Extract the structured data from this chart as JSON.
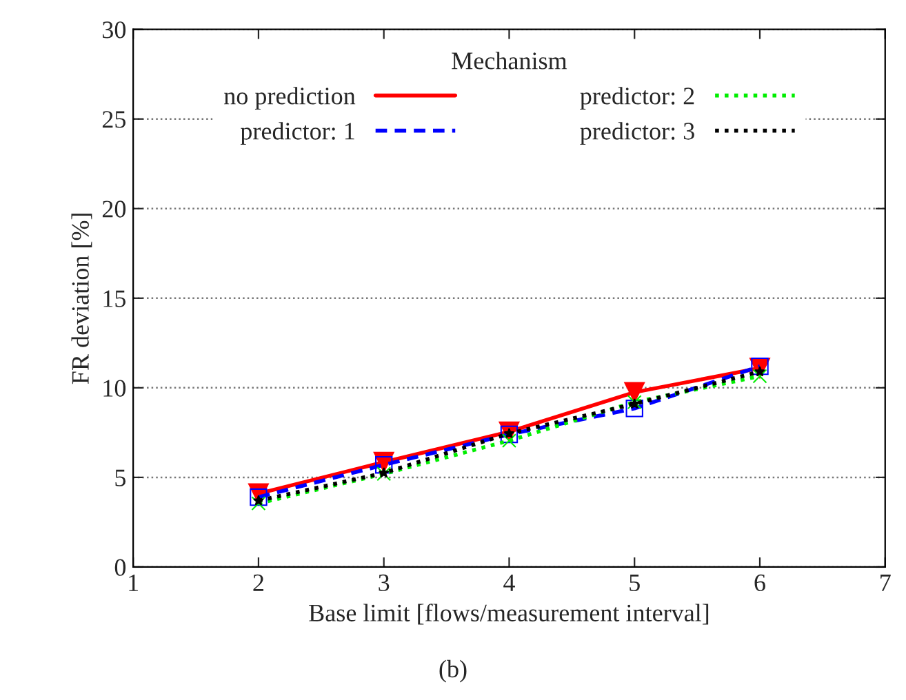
{
  "chart_data": {
    "type": "line",
    "xlabel": "Base limit [flows/measurement interval]",
    "ylabel": "FR deviation [%]",
    "legend_title": "Mechanism",
    "legend": "top",
    "grid": "y",
    "x": [
      2,
      3,
      4,
      5,
      6
    ],
    "xlim": [
      1,
      7
    ],
    "xticks": [
      1,
      2,
      3,
      4,
      5,
      6,
      7
    ],
    "ylim": [
      0,
      30
    ],
    "yticks": [
      0,
      5,
      10,
      15,
      20,
      25,
      30
    ],
    "series": [
      {
        "name": "no prediction",
        "color": "#ff0000",
        "line_style": "solid",
        "marker": "triangle",
        "values": [
          4.1,
          5.85,
          7.55,
          9.75,
          11.1
        ]
      },
      {
        "name": "predictor: 1",
        "color": "#0000ff",
        "line_style": "dashed",
        "marker": "square",
        "values": [
          3.9,
          5.7,
          7.4,
          8.85,
          11.2
        ]
      },
      {
        "name": "predictor: 2",
        "color": "#00ee00",
        "line_style": "dotted",
        "marker": "cross",
        "values": [
          3.55,
          5.2,
          7.05,
          9.2,
          10.65
        ]
      },
      {
        "name": "predictor: 3",
        "color": "#000000",
        "line_style": "dotted",
        "marker": "star",
        "values": [
          3.7,
          5.25,
          7.45,
          9.1,
          10.9
        ]
      }
    ],
    "annotations": [
      "(b)"
    ]
  }
}
